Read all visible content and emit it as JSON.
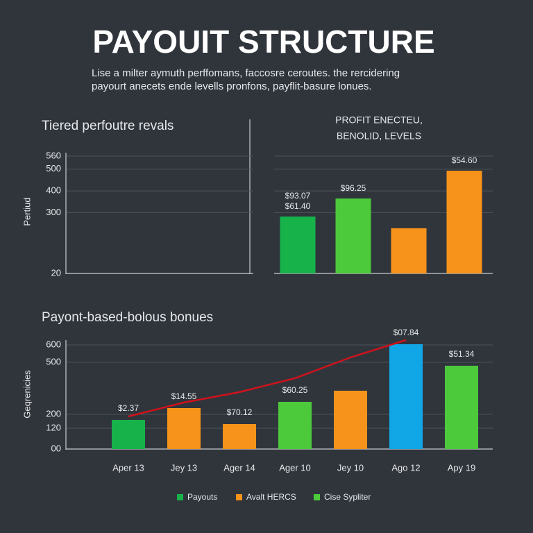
{
  "header": {
    "title": "PAYOUIT STRUCTURE",
    "subtitle": [
      "Lise a milter aymuth perffomans, faccosre ceroutes. the rercidering",
      "payourt anecets ende levells pronfons, payflit-basure lonues."
    ]
  },
  "chart_data": [
    {
      "type": "bar",
      "title": "Tiered perfoutre revals",
      "ylabel": "Pertiud",
      "ylim": [
        20,
        560
      ],
      "yticks": [
        560,
        500,
        400,
        300,
        20
      ],
      "grid": true
    },
    {
      "type": "bar",
      "title": [
        "PROFIT ENECTEU,",
        "BENOLID, LEVELS"
      ],
      "values": [
        282,
        365,
        228,
        493
      ],
      "colors": [
        "#17b24a",
        "#4dca3c",
        "#f7931a",
        "#f7931a"
      ],
      "annotations": [
        [
          "$93.07",
          "$61.40"
        ],
        [
          "$96.25"
        ],
        null,
        [
          "$54.60"
        ]
      ]
    },
    {
      "type": "bar",
      "title": "Payont-based-bolous bonues",
      "ylabel": "Geqrenicies",
      "categories": [
        "Aper 13",
        "Jey 13",
        "Ager 14",
        "Ager 10",
        "Jey 10",
        "Ago 12",
        "Apy 19"
      ],
      "values": [
        168,
        236,
        144,
        272,
        336,
        604,
        480
      ],
      "colors": [
        "#17b24a",
        "#f7931a",
        "#f7931a",
        "#4dca3c",
        "#f7931a",
        "#11a7e6",
        "#4dca3c"
      ],
      "annotations": [
        "$2.37",
        "$14.55",
        "$70.12",
        "$60.25",
        null,
        "$07.84",
        "$51.34"
      ],
      "trend": {
        "color": "#d0121b",
        "values": [
          188,
          268,
          328,
          408,
          528,
          628,
          null
        ]
      },
      "ylim": [
        0,
        650
      ],
      "yticks": [
        600,
        500,
        200,
        120,
        {
          "value": 0,
          "label": "00"
        }
      ],
      "grid": true,
      "legend": [
        {
          "name": "Payouts",
          "color": "#17b24a"
        },
        {
          "name": "Avalt HERCS",
          "color": "#f7931a"
        },
        {
          "name": "Cise Sypliter",
          "color": "#4dca3c"
        }
      ]
    }
  ]
}
